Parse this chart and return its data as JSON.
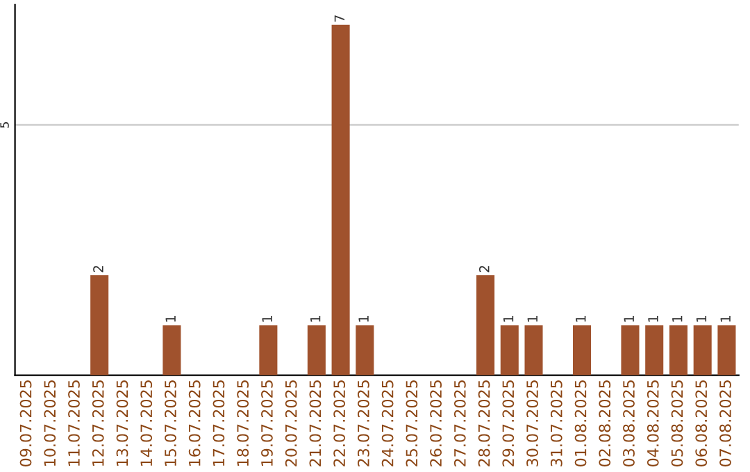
{
  "chart_data": {
    "type": "bar",
    "categories": [
      "09.07.2025",
      "10.07.2025",
      "11.07.2025",
      "12.07.2025",
      "13.07.2025",
      "14.07.2025",
      "15.07.2025",
      "16.07.2025",
      "17.07.2025",
      "18.07.2025",
      "19.07.2025",
      "20.07.2025",
      "21.07.2025",
      "22.07.2025",
      "23.07.2025",
      "24.07.2025",
      "25.07.2025",
      "26.07.2025",
      "27.07.2025",
      "28.07.2025",
      "29.07.2025",
      "30.07.2025",
      "31.07.2025",
      "01.08.2025",
      "02.08.2025",
      "03.08.2025",
      "04.08.2025",
      "05.08.2025",
      "06.08.2025",
      "07.08.2025"
    ],
    "values": [
      0,
      0,
      0,
      2,
      0,
      0,
      1,
      0,
      0,
      0,
      1,
      0,
      1,
      7,
      1,
      0,
      0,
      0,
      0,
      2,
      1,
      1,
      0,
      1,
      0,
      1,
      1,
      1,
      1,
      1
    ],
    "value_labels": [
      null,
      null,
      null,
      "2",
      null,
      null,
      "1",
      null,
      null,
      null,
      "1",
      null,
      "1",
      "7",
      "1",
      null,
      null,
      null,
      null,
      "2",
      "1",
      "1",
      null,
      "1",
      null,
      "1",
      "1",
      "1",
      "1",
      "1"
    ],
    "color": "#a0522d",
    "ylim": [
      0,
      7.4
    ],
    "yticks": [
      5
    ],
    "grid": "y",
    "legend": false
  }
}
